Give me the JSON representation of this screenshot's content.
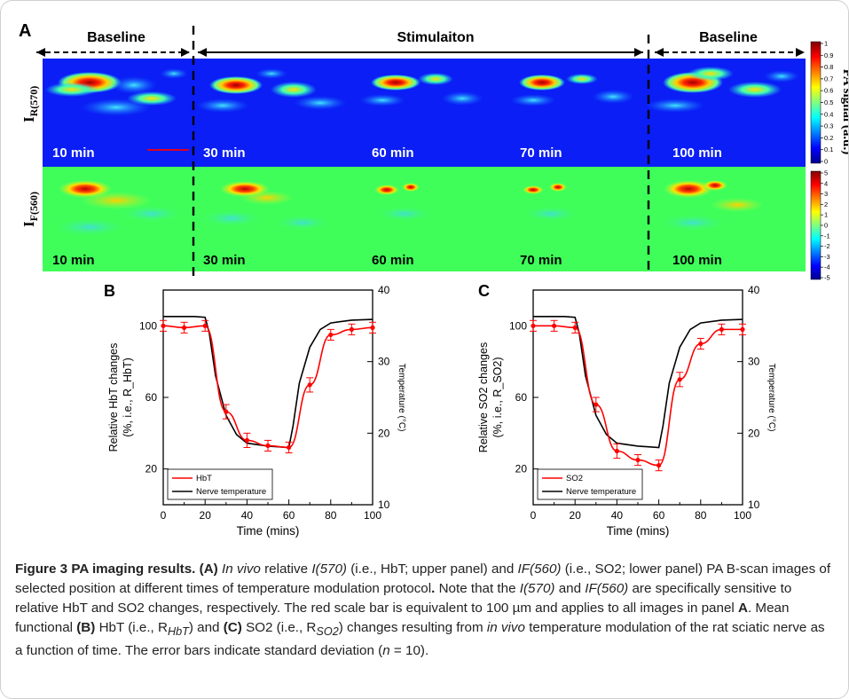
{
  "panel_a": {
    "letter": "A",
    "phase_labels": [
      "Baseline",
      "Stimulaiton",
      "Baseline"
    ],
    "row_labels": {
      "top_main": "I",
      "top_sub": "R(570)",
      "bottom_main": "I",
      "bottom_sub": "F(560)"
    },
    "time_labels": [
      "10 min",
      "30 min",
      "60 min",
      "70 min",
      "100 min"
    ],
    "colorbar_top_ticks": [
      "1",
      "0.9",
      "0.8",
      "0.7",
      "0.6",
      "0.5",
      "0.4",
      "0.3",
      "0.2",
      "0.1",
      "0"
    ],
    "colorbar_bottom_ticks": [
      "5",
      "4",
      "3",
      "2",
      "1",
      "0",
      "-1",
      "-2",
      "-3",
      "-4",
      "-5"
    ],
    "colorbar_label": "PA signal (a.u.)"
  },
  "chart_data": [
    {
      "panel": "B",
      "type": "line",
      "xlabel": "Time (mins)",
      "ylabel_left": "Relative HbT changes (%, i.e., R_HbT)",
      "ylabel_right": "Temperature (°C)",
      "xlim": [
        0,
        100
      ],
      "ylim_left": [
        0,
        120
      ],
      "ylim_right": [
        10,
        40
      ],
      "x_ticks": [
        "0",
        "20",
        "40",
        "60",
        "80",
        "100"
      ],
      "y_left_ticks": [
        "20",
        "60",
        "100"
      ],
      "y_right_ticks": [
        "10",
        "20",
        "30",
        "40"
      ],
      "legend": [
        "HbT",
        "Nerve temperature"
      ],
      "series": [
        {
          "name": "HbT",
          "color": "#ff0000",
          "x": [
            0,
            10,
            20,
            30,
            40,
            50,
            60,
            70,
            80,
            90,
            100
          ],
          "values": [
            100,
            99,
            100,
            52,
            36,
            33,
            32,
            67,
            95,
            98,
            99
          ],
          "error": [
            3,
            3,
            3,
            4,
            4,
            3,
            3,
            4,
            3,
            3,
            3
          ]
        },
        {
          "name": "Nerve temperature",
          "color": "#000000",
          "axis": "right",
          "x": [
            0,
            5,
            15,
            20,
            22,
            25,
            30,
            35,
            40,
            50,
            55,
            60,
            62,
            65,
            70,
            75,
            80,
            90,
            100
          ],
          "values": [
            36.3,
            36.3,
            36.3,
            36.2,
            34,
            28,
            22.5,
            19.8,
            18.6,
            18.2,
            18.1,
            18,
            21,
            27,
            32,
            34.5,
            35.4,
            35.8,
            35.9
          ]
        }
      ]
    },
    {
      "panel": "C",
      "type": "line",
      "xlabel": "Time (mins)",
      "ylabel_left": "Relative SO2 changes (%, i.e., R_SO2)",
      "ylabel_right": "Temperature (°C)",
      "xlim": [
        0,
        100
      ],
      "ylim_left": [
        0,
        120
      ],
      "ylim_right": [
        10,
        40
      ],
      "x_ticks": [
        "0",
        "20",
        "40",
        "60",
        "80",
        "100"
      ],
      "y_left_ticks": [
        "20",
        "60",
        "100"
      ],
      "y_right_ticks": [
        "10",
        "20",
        "30",
        "40"
      ],
      "legend": [
        "SO2",
        "Nerve temperature"
      ],
      "series": [
        {
          "name": "SO2",
          "color": "#ff0000",
          "x": [
            0,
            10,
            20,
            30,
            40,
            50,
            60,
            70,
            80,
            90,
            100
          ],
          "values": [
            100,
            100,
            99,
            56,
            30,
            25,
            22,
            70,
            90,
            98,
            98
          ],
          "error": [
            3,
            3,
            3,
            4,
            4,
            3,
            3,
            4,
            3,
            3,
            3
          ]
        },
        {
          "name": "Nerve temperature",
          "color": "#000000",
          "axis": "right",
          "x": [
            0,
            5,
            15,
            20,
            22,
            25,
            30,
            35,
            40,
            50,
            55,
            60,
            62,
            65,
            70,
            75,
            80,
            90,
            100
          ],
          "values": [
            36.3,
            36.3,
            36.3,
            36.2,
            34,
            28,
            22.5,
            19.8,
            18.6,
            18.2,
            18.1,
            18,
            21,
            27,
            32,
            34.5,
            35.4,
            35.8,
            35.9
          ]
        }
      ]
    }
  ],
  "caption": {
    "figure": "Figure 3",
    "title": "PA imaging results.",
    "a_label": "(A)",
    "in_vivo": "In vivo",
    "t1": "relative",
    "i570": "I(570)",
    "t2": "(i.e., HbT; upper panel) and",
    "if560": "IF(560)",
    "t3": "(i.e., SO2; lower panel) PA B-scan images of selected position at different times of temperature modulation protocol",
    "t4": "Note that the",
    "t5": "and",
    "t6": "are specifically sensitive to relative HbT and SO2 changes, respectively. The red scale bar is equivalent to 100 µm and applies to all images in panel",
    "panel_a": "A",
    "t7": ". Mean functional",
    "b_label": "(B)",
    "t8": "HbT (i.e., R",
    "sub_hbt": "HbT",
    "t9": ") and",
    "c_label": "(C)",
    "t10": "SO2 (i.e., R",
    "sub_so2": "SO2",
    "t11": ") changes resulting from",
    "in_vivo2": "in vivo",
    "t12": "temperature modulation of the rat sciatic nerve as a function of time. The error bars indicate standard deviation (",
    "n_italic": "n",
    "t13": "= 10)."
  }
}
